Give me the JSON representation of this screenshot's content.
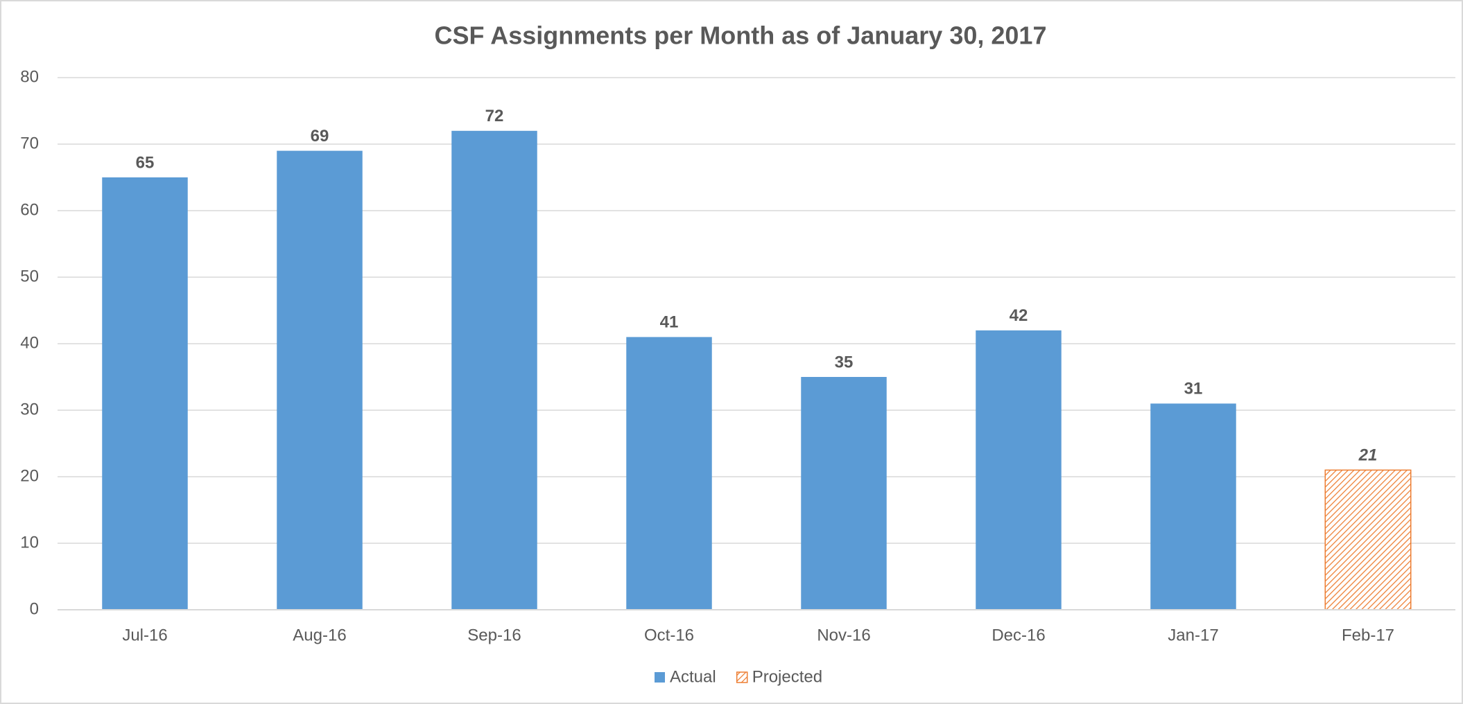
{
  "chart_data": {
    "type": "bar",
    "title": "CSF Assignments per Month as of January 30, 2017",
    "categories": [
      "Jul-16",
      "Aug-16",
      "Sep-16",
      "Oct-16",
      "Nov-16",
      "Dec-16",
      "Jan-17",
      "Feb-17"
    ],
    "series": [
      {
        "name": "Actual",
        "color": "#5b9bd5",
        "values": [
          65,
          69,
          72,
          41,
          35,
          42,
          31,
          null
        ]
      },
      {
        "name": "Projected",
        "color": "#ed7d31",
        "pattern": "hatch",
        "values": [
          null,
          null,
          null,
          null,
          null,
          null,
          null,
          21
        ]
      }
    ],
    "ylim": [
      0,
      80
    ],
    "yticks": [
      0,
      10,
      20,
      30,
      40,
      50,
      60,
      70,
      80
    ],
    "grid": true,
    "legend": "bottom"
  }
}
